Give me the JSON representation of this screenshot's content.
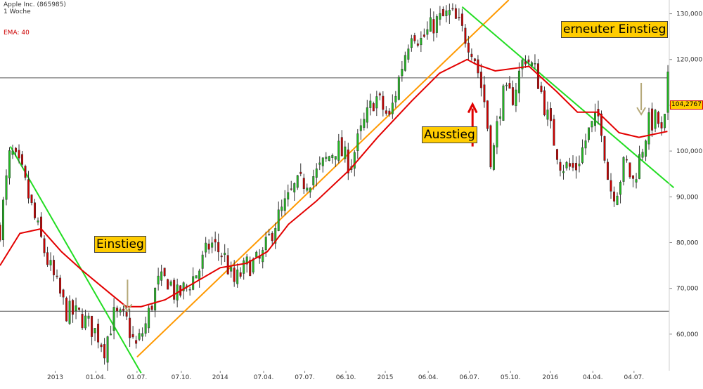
{
  "header": {
    "instrument": "Apple Inc. (865985)",
    "interval": "1 Woche",
    "indicator": "EMA: 40"
  },
  "colors": {
    "candle_up": "#22bb22",
    "candle_down": "#cc0000",
    "ema": "#e30000",
    "downtrend_line": "#22dd22",
    "uptrend_line": "#ff9900",
    "signal_arrow_buy": "#b5a878",
    "signal_arrow_sell": "#e00000",
    "callout_bg": "#ffcc00"
  },
  "annotations": {
    "entry": "Einstieg",
    "exit": "Ausstieg",
    "re_entry": "erneuter Einstieg",
    "last_price": "104,2767"
  },
  "chart_data": {
    "type": "candlestick",
    "title": "Apple Inc. (865985)",
    "subtitle": "1 Woche",
    "y_axis": {
      "position": "right",
      "range": [
        52000,
        133000
      ],
      "ticks": [
        60000,
        70000,
        80000,
        90000,
        100000,
        110000,
        120000,
        130000
      ],
      "tick_labels": [
        "60,000",
        "70,000",
        "80,000",
        "90,000",
        "100,000",
        "110,000",
        "120,000",
        "130,000"
      ]
    },
    "x_axis": {
      "range": [
        "2012-09-01",
        "2016-09-20"
      ],
      "ticks": [
        "2013-01-01",
        "2013-04-01",
        "2013-07-01",
        "2013-10-07",
        "2014-01-01",
        "2014-04-07",
        "2014-07-07",
        "2014-10-06",
        "2015-01-01",
        "2015-04-06",
        "2015-07-06",
        "2015-10-05",
        "2016-01-01",
        "2016-04-04",
        "2016-07-04"
      ],
      "tick_labels": [
        "2013",
        "01.04.",
        "01.07.",
        "07.10.",
        "2014",
        "07.04.",
        "07.07.",
        "06.10.",
        "2015",
        "06.04.",
        "06.07.",
        "05.10.",
        "2016",
        "04.04.",
        "04.07."
      ]
    },
    "horizontal_lines": [
      116000,
      65000
    ],
    "price_anchors": [
      [
        "2012-09-01",
        83000
      ],
      [
        "2012-09-24",
        100000
      ],
      [
        "2012-10-20",
        95000
      ],
      [
        "2012-11-20",
        84000
      ],
      [
        "2012-12-15",
        76000
      ],
      [
        "2013-01-25",
        65000
      ],
      [
        "2013-02-25",
        64000
      ],
      [
        "2013-04-05",
        60000
      ],
      [
        "2013-04-20",
        57000
      ],
      [
        "2013-05-10",
        64000
      ],
      [
        "2013-06-07",
        63000
      ],
      [
        "2013-06-28",
        57000
      ],
      [
        "2013-07-20",
        62000
      ],
      [
        "2013-08-15",
        71000
      ],
      [
        "2013-09-10",
        72000
      ],
      [
        "2013-09-25",
        68000
      ],
      [
        "2013-10-15",
        70000
      ],
      [
        "2013-11-15",
        74000
      ],
      [
        "2013-12-10",
        80000
      ],
      [
        "2014-01-10",
        77000
      ],
      [
        "2014-01-30",
        71000
      ],
      [
        "2014-03-01",
        75000
      ],
      [
        "2014-04-01",
        76000
      ],
      [
        "2014-05-01",
        84000
      ],
      [
        "2014-06-15",
        92000
      ],
      [
        "2014-08-01",
        95000
      ],
      [
        "2014-09-15",
        101000
      ],
      [
        "2014-10-15",
        97000
      ],
      [
        "2014-11-15",
        106000
      ],
      [
        "2014-12-10",
        112000
      ],
      [
        "2015-01-10",
        107000
      ],
      [
        "2015-02-10",
        120000
      ],
      [
        "2015-03-01",
        127000
      ],
      [
        "2015-03-20",
        124000
      ],
      [
        "2015-04-20",
        128000
      ],
      [
        "2015-05-25",
        130000
      ],
      [
        "2015-06-15",
        127000
      ],
      [
        "2015-07-15",
        122000
      ],
      [
        "2015-08-10",
        110000
      ],
      [
        "2015-08-24",
        97000
      ],
      [
        "2015-09-15",
        112000
      ],
      [
        "2015-10-10",
        112000
      ],
      [
        "2015-11-05",
        121000
      ],
      [
        "2015-12-01",
        117000
      ],
      [
        "2016-01-01",
        105000
      ],
      [
        "2016-01-25",
        97000
      ],
      [
        "2016-02-25",
        96000
      ],
      [
        "2016-03-25",
        104000
      ],
      [
        "2016-04-20",
        108000
      ],
      [
        "2016-05-10",
        92000
      ],
      [
        "2016-05-25",
        91000
      ],
      [
        "2016-06-15",
        98000
      ],
      [
        "2016-07-01",
        93000
      ],
      [
        "2016-07-15",
        98000
      ],
      [
        "2016-08-05",
        106000
      ],
      [
        "2016-08-25",
        107000
      ],
      [
        "2016-09-07",
        102000
      ],
      [
        "2016-09-16",
        115000
      ]
    ],
    "ema40_anchors": [
      [
        "2012-09-01",
        75000
      ],
      [
        "2012-10-15",
        82000
      ],
      [
        "2012-12-01",
        83000
      ],
      [
        "2013-01-15",
        78000
      ],
      [
        "2013-03-01",
        74000
      ],
      [
        "2013-05-01",
        69000
      ],
      [
        "2013-06-07",
        66000
      ],
      [
        "2013-07-10",
        66000
      ],
      [
        "2013-09-01",
        67500
      ],
      [
        "2013-11-01",
        71000
      ],
      [
        "2014-01-01",
        74500
      ],
      [
        "2014-03-01",
        75500
      ],
      [
        "2014-04-15",
        78000
      ],
      [
        "2014-06-01",
        84000
      ],
      [
        "2014-08-01",
        89000
      ],
      [
        "2014-10-15",
        96000
      ],
      [
        "2014-12-15",
        103000
      ],
      [
        "2015-03-01",
        111000
      ],
      [
        "2015-05-01",
        117000
      ],
      [
        "2015-07-01",
        120000
      ],
      [
        "2015-07-20",
        119000
      ],
      [
        "2015-09-01",
        117500
      ],
      [
        "2015-11-15",
        118500
      ],
      [
        "2016-01-15",
        113000
      ],
      [
        "2016-03-01",
        108500
      ],
      [
        "2016-04-15",
        108500
      ],
      [
        "2016-06-01",
        104000
      ],
      [
        "2016-07-15",
        103000
      ],
      [
        "2016-09-16",
        104300
      ]
    ],
    "series": [
      {
        "name": "Apple Inc. (865985)",
        "type": "candlestick"
      },
      {
        "name": "EMA: 40",
        "type": "line"
      }
    ],
    "trendlines": [
      {
        "role": "downtrend",
        "from": [
          "2012-09-24",
          101000
        ],
        "to": [
          "2013-07-10",
          51500
        ]
      },
      {
        "role": "uptrend",
        "from": [
          "2013-07-01",
          55000
        ],
        "to": [
          "2015-10-01",
          133000
        ]
      },
      {
        "role": "downtrend",
        "from": [
          "2015-06-20",
          131500
        ],
        "to": [
          "2016-09-30",
          92000
        ]
      }
    ],
    "signals": [
      {
        "label": "Einstieg",
        "date": "2013-06-10",
        "price": 65000,
        "kind": "entry"
      },
      {
        "label": "Ausstieg",
        "date": "2015-07-13",
        "price": 101000,
        "kind": "exit"
      },
      {
        "label": "erneuter Einstieg",
        "date": "2016-07-20",
        "price": 108000,
        "kind": "entry"
      }
    ],
    "last_value": 104276.7
  }
}
